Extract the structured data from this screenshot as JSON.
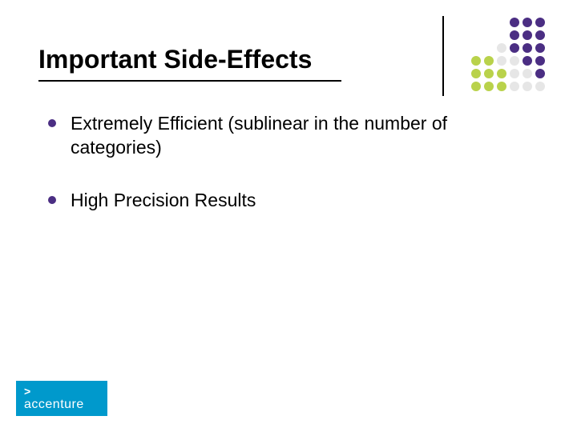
{
  "slide": {
    "title": "Important Side-Effects",
    "title_fontsize": 32,
    "title_color": "#000000",
    "title_underline_color": "#000000",
    "background_color": "#ffffff",
    "bullets": [
      {
        "text": "Extremely Efficient (sublinear in the number of categories)"
      },
      {
        "text": "High Precision Results"
      }
    ],
    "bullet_dot_color": "#4b2e83",
    "bullet_fontsize": 23,
    "bullet_text_color": "#000000"
  },
  "decoration": {
    "vline_color": "#000000",
    "dot_grid": {
      "rows": 6,
      "cols": 6,
      "gap": 4,
      "dot_size": 12,
      "colors": [
        [
          "",
          "",
          "",
          "#4b2e83",
          "#4b2e83",
          "#4b2e83"
        ],
        [
          "",
          "",
          "",
          "#4b2e83",
          "#4b2e83",
          "#4b2e83"
        ],
        [
          "",
          "",
          "#e6e6e6",
          "#4b2e83",
          "#4b2e83",
          "#4b2e83"
        ],
        [
          "#b9d24b",
          "#b9d24b",
          "#e6e6e6",
          "#e6e6e6",
          "#4b2e83",
          "#4b2e83"
        ],
        [
          "#b9d24b",
          "#b9d24b",
          "#b9d24b",
          "#e6e6e6",
          "#e6e6e6",
          "#4b2e83"
        ],
        [
          "#b9d24b",
          "#b9d24b",
          "#b9d24b",
          "#e6e6e6",
          "#e6e6e6",
          "#e6e6e6"
        ]
      ]
    }
  },
  "logo": {
    "background_color": "#0099cc",
    "caret": ">",
    "text": "accenture",
    "text_color": "#ffffff"
  }
}
